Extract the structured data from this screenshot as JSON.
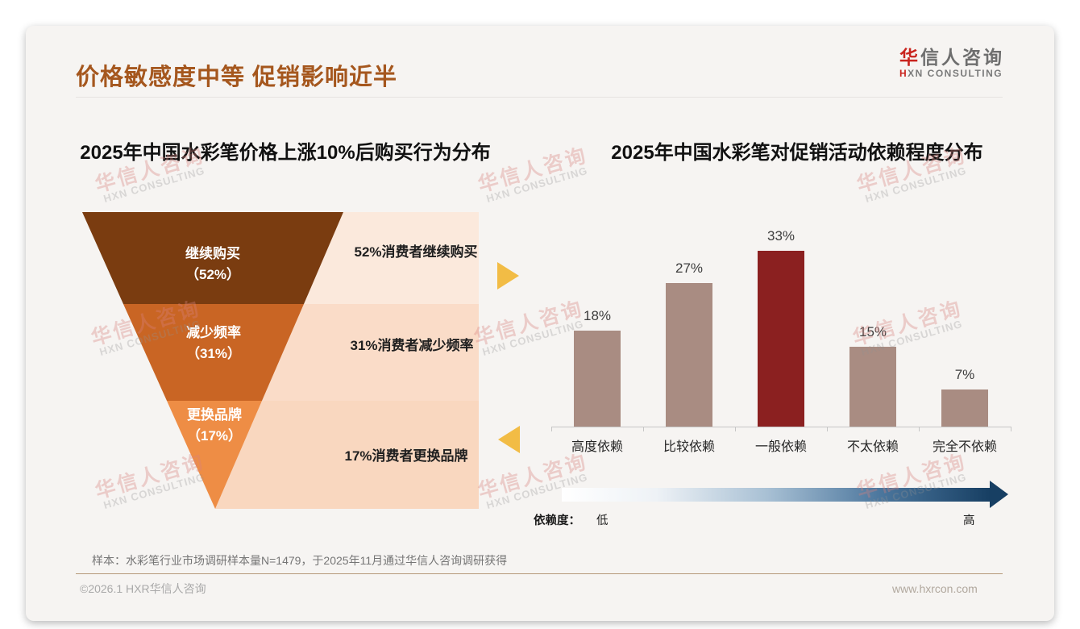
{
  "page": {
    "title": "价格敏感度中等 促销影响近半",
    "logo": {
      "cn_accent": "华",
      "cn_rest": "信人咨询",
      "en_accent": "H",
      "en_rest": "XN CONSULTING"
    },
    "watermark": {
      "line1": "华信人咨询",
      "line2": "HXN CONSULTING"
    },
    "footnote": "样本：水彩笔行业市场调研样本量N=1479，于2025年11月通过华信人咨询调研获得",
    "footer_left": "©2026.1 HXR华信人咨询",
    "footer_right": "www.hxrcon.com",
    "colors": {
      "title_accent": "#a5571e",
      "logo_accent": "#c9241e",
      "triangle_accent": "#f2bc45",
      "footer_divider": "#b5997a",
      "card_background": "#f6f4f2"
    }
  },
  "dependency_scale": {
    "label": "依赖度：",
    "low": "低",
    "high": "高",
    "gradient_start": "#ffffff",
    "gradient_end": "#173f63"
  },
  "chart_data": [
    {
      "type": "funnel",
      "title": "2025年中国水彩笔价格上涨10%后购买行为分布",
      "categories": [
        "继续购买",
        "减少频率",
        "更换品牌"
      ],
      "values": [
        52,
        31,
        17
      ],
      "unit": "%",
      "stage_pct_labels": [
        "（52%）",
        "（31%）",
        "（17%）"
      ],
      "annotations": [
        "52%消费者继续购买",
        "31%消费者减少频率",
        "17%消费者更换品牌"
      ],
      "stage_colors": [
        "#7a3c10",
        "#c96524",
        "#ee8d45"
      ],
      "annotation_bg": [
        "#fbe9dc",
        "#fadcc8",
        "#f9d7bf"
      ]
    },
    {
      "type": "bar",
      "title": "2025年中国水彩笔对促销活动依赖程度分布",
      "categories": [
        "高度依赖",
        "比较依赖",
        "一般依赖",
        "不太依赖",
        "完全不依赖"
      ],
      "values": [
        18,
        27,
        33,
        15,
        7
      ],
      "data_labels": [
        "18%",
        "27%",
        "33%",
        "15%",
        "7%"
      ],
      "unit": "%",
      "ylim": [
        0,
        35
      ],
      "grid": false,
      "legend": "none",
      "bar_color": "#a98c82",
      "highlight_color": "#8b2020",
      "highlight_index": 2
    }
  ]
}
